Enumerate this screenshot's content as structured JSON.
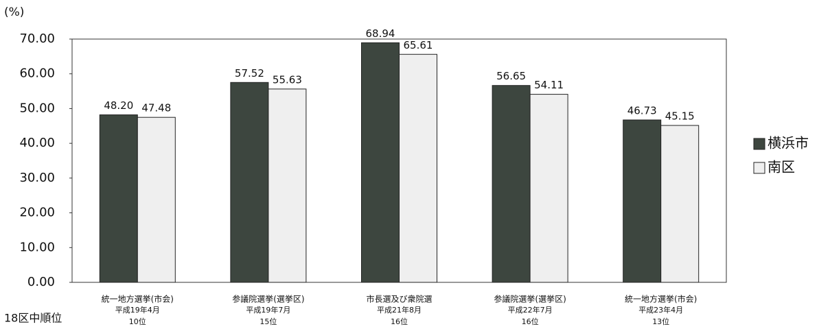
{
  "chart_data": {
    "type": "bar",
    "y_label": "(%)",
    "categories": [
      "統一地方選挙(市会)",
      "参議院選挙(選挙区)",
      "市長選及び衆院選",
      "参議院選挙(選挙区)",
      "統一地方選挙(市会)"
    ],
    "category_dates": [
      "平成19年4月",
      "平成19年7月",
      "平成21年8月",
      "平成22年7月",
      "平成23年4月"
    ],
    "rank_label": "18区中順位",
    "ranks": [
      "10位",
      "15位",
      "16位",
      "16位",
      "13位"
    ],
    "series": [
      {
        "name": "横浜市",
        "color": "#3d463f",
        "values": [
          48.2,
          57.52,
          68.94,
          56.65,
          46.73
        ],
        "value_labels": [
          "48.20",
          "57.52",
          "68.94",
          "56.65",
          "46.73"
        ]
      },
      {
        "name": "南区",
        "color": "#efefef",
        "values": [
          47.48,
          55.63,
          65.61,
          54.11,
          45.15
        ],
        "value_labels": [
          "47.48",
          "55.63",
          "65.61",
          "54.11",
          "45.15"
        ]
      }
    ],
    "ylim": [
      0,
      70
    ],
    "yticks": [
      {
        "value": 0,
        "label": "0.00"
      },
      {
        "value": 10,
        "label": "10.00"
      },
      {
        "value": 20,
        "label": "20.00"
      },
      {
        "value": 30,
        "label": "30.00"
      },
      {
        "value": 40,
        "label": "40.00"
      },
      {
        "value": 50,
        "label": "50.00"
      },
      {
        "value": 60,
        "label": "60.00"
      },
      {
        "value": 70,
        "label": "70.00"
      }
    ],
    "legend": "right"
  }
}
